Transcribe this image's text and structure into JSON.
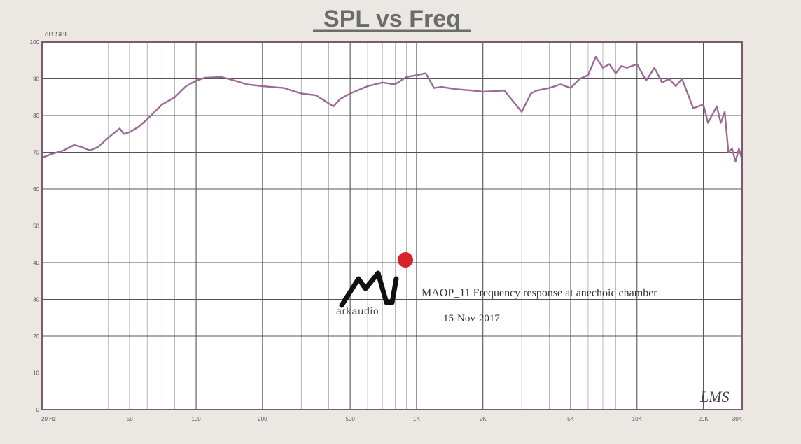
{
  "chart_data": {
    "type": "line",
    "title": "SPL vs Freq",
    "ylabel": "dB SPL",
    "xlabel": "",
    "x_scale": "log",
    "xlim": [
      20,
      30000
    ],
    "ylim": [
      0,
      100
    ],
    "grid": true,
    "y_ticks": [
      0,
      10,
      20,
      30,
      40,
      50,
      60,
      70,
      80,
      90,
      100
    ],
    "x_ticks": [
      {
        "value": 20,
        "label": "20 Hz"
      },
      {
        "value": 50,
        "label": "50"
      },
      {
        "value": 100,
        "label": "100"
      },
      {
        "value": 200,
        "label": "200"
      },
      {
        "value": 500,
        "label": "500"
      },
      {
        "value": 1000,
        "label": "1K"
      },
      {
        "value": 2000,
        "label": "2K"
      },
      {
        "value": 5000,
        "label": "5K"
      },
      {
        "value": 10000,
        "label": "10K"
      },
      {
        "value": 20000,
        "label": "20K"
      },
      {
        "value": 30000,
        "label": "30K"
      }
    ],
    "series_color": "#9b6a98",
    "series": [
      {
        "x": [
          20,
          22,
          25,
          28,
          30,
          33,
          36,
          40,
          45,
          47,
          50,
          55,
          60,
          70,
          80,
          90,
          100,
          110,
          130,
          150,
          170,
          200,
          250,
          300,
          350,
          420,
          450,
          500,
          600,
          700,
          800,
          900,
          1000,
          1100,
          1200,
          1300,
          1500,
          1800,
          2000,
          2500,
          3000,
          3300,
          3500,
          4000,
          4500,
          5000,
          5500,
          6000,
          6500,
          7000,
          7500,
          8000,
          8500,
          9000,
          10000,
          11000,
          12000,
          13000,
          14000,
          15000,
          16000,
          18000,
          20000,
          21000,
          23000,
          24000,
          25000,
          26000,
          27000,
          28000,
          29000,
          30000
        ],
        "y": [
          68.5,
          69.5,
          70.5,
          72,
          71.5,
          70.5,
          71.5,
          74,
          76.5,
          75,
          75.5,
          77,
          79,
          83,
          85,
          88,
          89.5,
          90.3,
          90.5,
          89.5,
          88.5,
          88,
          87.5,
          86,
          85.5,
          82.5,
          84.5,
          86,
          88,
          89,
          88.5,
          90.5,
          91,
          91.5,
          87.5,
          87.8,
          87.2,
          86.8,
          86.5,
          86.8,
          81,
          86,
          86.8,
          87.5,
          88.5,
          87.5,
          90,
          91,
          96,
          93,
          94,
          91.5,
          93.5,
          93,
          94,
          89.5,
          93,
          89,
          90,
          88,
          90,
          82,
          83,
          78,
          82.5,
          78,
          81,
          70,
          71,
          67.5,
          71,
          68
        ]
      }
    ],
    "annotation": "MAOP_11 Frequency response at anechoic chamber",
    "date": "15-Nov-2017",
    "watermark": "LMS"
  },
  "logo": {
    "text": "arkaudio",
    "dot_color": "#d8232a",
    "mark_color": "#111111"
  }
}
